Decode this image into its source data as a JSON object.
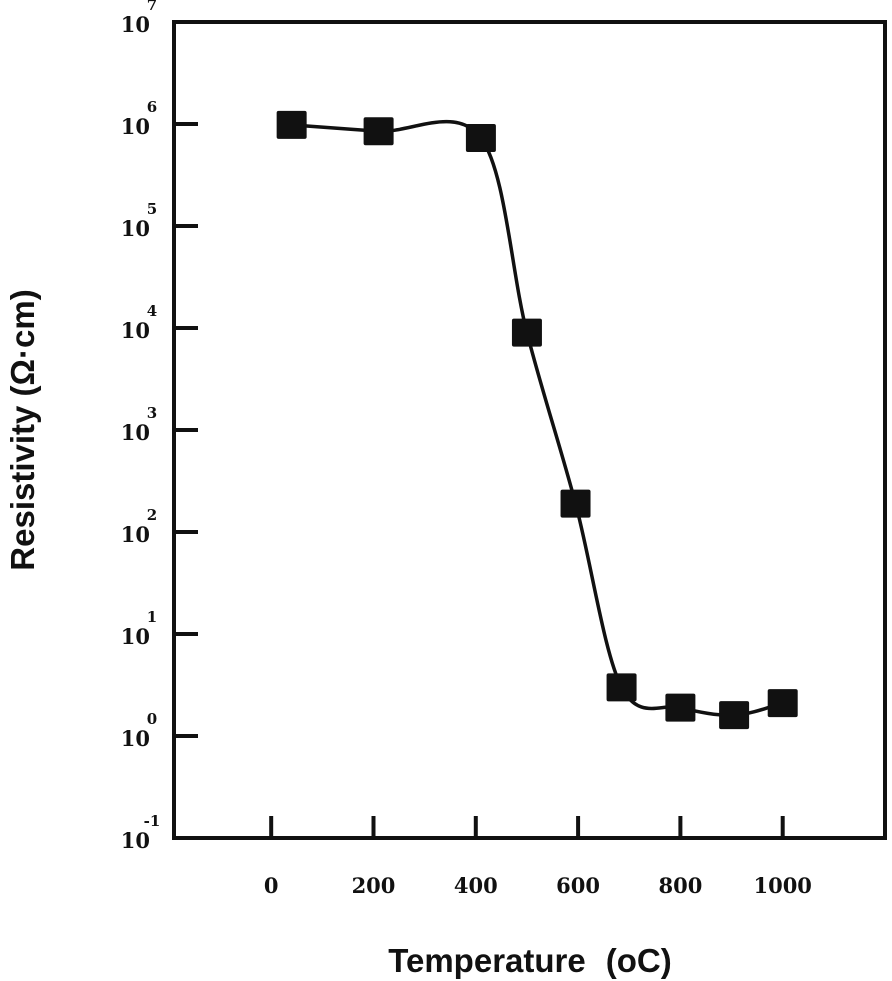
{
  "chart_data": {
    "type": "line",
    "title": "",
    "xlabel": "Temperature",
    "xlabel_unit": "(oC)",
    "ylabel": "Resistivity (Ω·cm)",
    "yscale": "log",
    "xlim": [
      -190,
      1200
    ],
    "ylim_exponents": [
      -1,
      7
    ],
    "grid": false,
    "x_ticks": [
      "0",
      "200",
      "400",
      "600",
      "800",
      "1000"
    ],
    "x_tick_values": [
      0,
      200,
      400,
      600,
      800,
      1000
    ],
    "y_ticks": [
      {
        "base": "10",
        "exp": "7"
      },
      {
        "base": "10",
        "exp": "6"
      },
      {
        "base": "10",
        "exp": "5"
      },
      {
        "base": "10",
        "exp": "4"
      },
      {
        "base": "10",
        "exp": "3"
      },
      {
        "base": "10",
        "exp": "2"
      },
      {
        "base": "10",
        "exp": "1"
      },
      {
        "base": "10",
        "exp": "0"
      },
      {
        "base": "10",
        "exp": "-1"
      }
    ],
    "series": [
      {
        "name": "Resistivity",
        "marker": "filled-square",
        "color": "#111111",
        "x": [
          40,
          210,
          410,
          500,
          595,
          685,
          800,
          905,
          1000
        ],
        "y": [
          980000,
          850000,
          730000,
          9000,
          190,
          3.0,
          1.9,
          1.6,
          2.1
        ]
      }
    ]
  }
}
